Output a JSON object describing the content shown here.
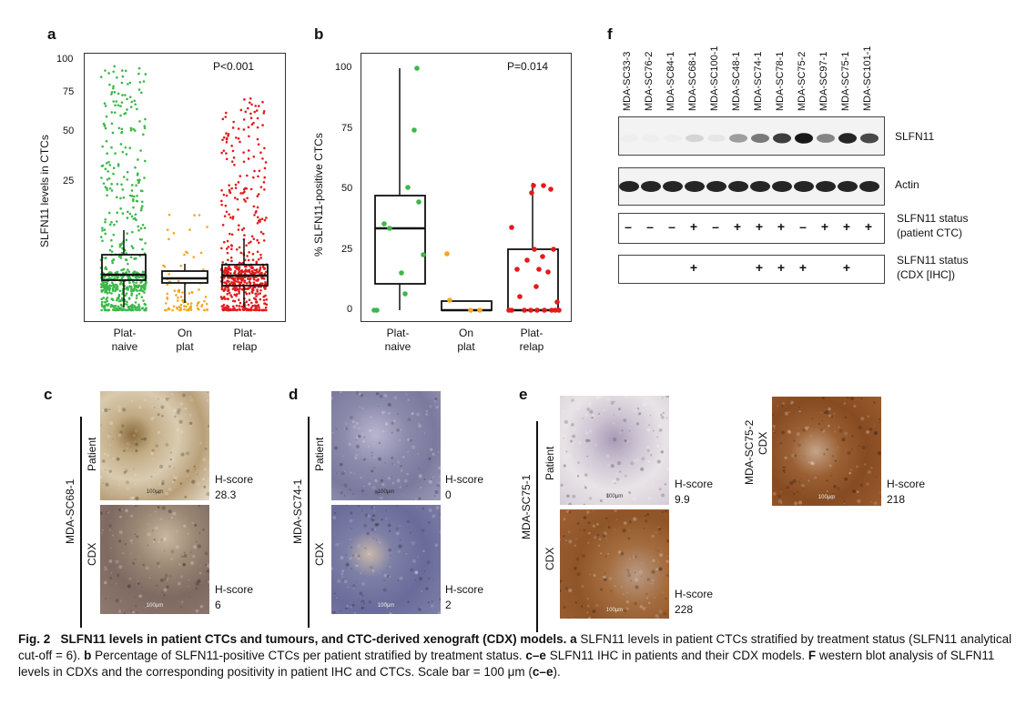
{
  "panels": {
    "a": {
      "letter": "a",
      "ylabel": "SLFN11 levels in CTCs",
      "pvalue": "P<0.001",
      "yticks": [
        "100",
        "75",
        "50",
        "25"
      ],
      "categories": [
        {
          "l1": "Plat-",
          "l2": "naive"
        },
        {
          "l1": "On",
          "l2": "plat"
        },
        {
          "l1": "Plat-",
          "l2": "relap"
        }
      ]
    },
    "b": {
      "letter": "b",
      "ylabel": "% SLFN11-positive CTCs",
      "pvalue": "P=0.014",
      "yticks": [
        "100",
        "75",
        "50",
        "25",
        "0"
      ],
      "categories": [
        {
          "l1": "Plat-",
          "l2": "naive"
        },
        {
          "l1": "On",
          "l2": "plat"
        },
        {
          "l1": "Plat-",
          "l2": "relap"
        }
      ]
    },
    "c": {
      "letter": "c",
      "model": "MDA-SC68-1",
      "patient_label": "Patient",
      "cdx_label": "CDX",
      "patient_score_label": "H-score",
      "patient_score": "28.3",
      "cdx_score_label": "H-score",
      "cdx_score": "6",
      "scale": "100μm"
    },
    "d": {
      "letter": "d",
      "model": "MDA-SC74-1",
      "patient_label": "Patient",
      "cdx_label": "CDX",
      "patient_score_label": "H-score",
      "patient_score": "0",
      "cdx_score_label": "H-score",
      "cdx_score": "2",
      "scale": "100μm"
    },
    "e": {
      "letter": "e",
      "model": "MDA-SC75-1",
      "patient_label": "Patient",
      "cdx_label": "CDX",
      "patient_score_label": "H-score",
      "patient_score": "9.9",
      "cdx_score_label": "H-score",
      "cdx_score": "228",
      "model2": "MDA-SC75-2",
      "cdx2_label": "CDX",
      "cdx2_score_label": "H-score",
      "cdx2_score": "218",
      "scale": "100μm"
    },
    "f": {
      "letter": "f",
      "lanes": [
        "MDA-SC33-3",
        "MDA-SC76-2",
        "MDA-SC84-1",
        "MDA-SC68-1",
        "MDA-SC100-1",
        "MDA-SC48-1",
        "MDA-SC74-1",
        "MDA-SC78-1",
        "MDA-SC75-2",
        "MDA-SC97-1",
        "MDA-SC75-1",
        "MDA-SC101-1"
      ],
      "blot1_label": "SLFN11",
      "blot2_label": "Actin",
      "status1_label_l1": "SLFN11 status",
      "status1_label_l2": "(patient CTC)",
      "status1": [
        "–",
        "–",
        "–",
        "+",
        "–",
        "+",
        "+",
        "+",
        "–",
        "+",
        "+",
        "+"
      ],
      "status2_label_l1": "SLFN11 status",
      "status2_label_l2": "(CDX [IHC])",
      "status2": [
        "",
        "",
        "",
        "+",
        "",
        "",
        "+",
        "+",
        "+",
        "",
        "+",
        ""
      ]
    }
  },
  "caption": {
    "fig": "Fig. 2",
    "title": "SLFN11 levels in patient CTCs and tumours, and CTC-derived xenograft (CDX) models.",
    "a_letter": "a",
    "a_text": " SLFN11 levels in patient CTCs stratified by treatment status (SLFN11 analytical cut-off = 6). ",
    "b_letter": "b",
    "b_text": " Percentage of SLFN11-positive CTCs per patient stratified by treatment status. ",
    "ce_letter": "c–e",
    "ce_text": " SLFN11 IHC in patients and their CDX models. ",
    "f_letter": "F",
    "f_text": " western blot analysis of SLFN11 levels in CDXs and the corresponding positivity in patient IHC and CTCs. Scale bar = 100 μm (",
    "end_letter": "c–e",
    "end_text": ")."
  }
}
